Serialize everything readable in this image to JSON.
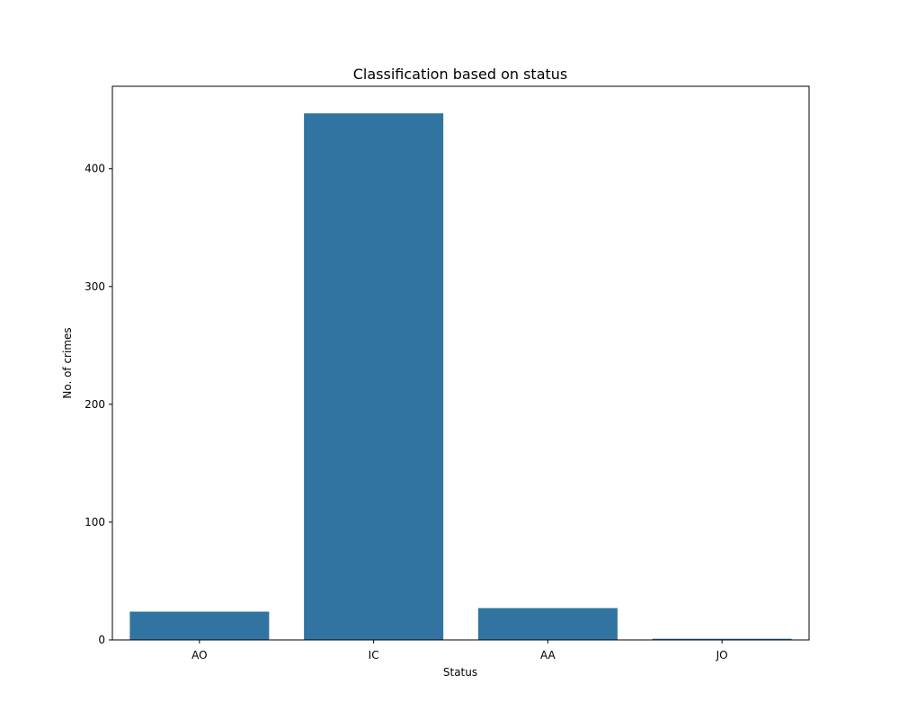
{
  "chart_data": {
    "type": "bar",
    "title": "Classification based on status",
    "xlabel": "Status",
    "ylabel": "No. of crimes",
    "categories": [
      "AO",
      "IC",
      "AA",
      "JO"
    ],
    "values": [
      24,
      447,
      27,
      1
    ],
    "ylim": [
      0,
      470
    ],
    "yticks": [
      0,
      100,
      200,
      300,
      400
    ],
    "grid": false,
    "bar_color": "#3274a1"
  }
}
